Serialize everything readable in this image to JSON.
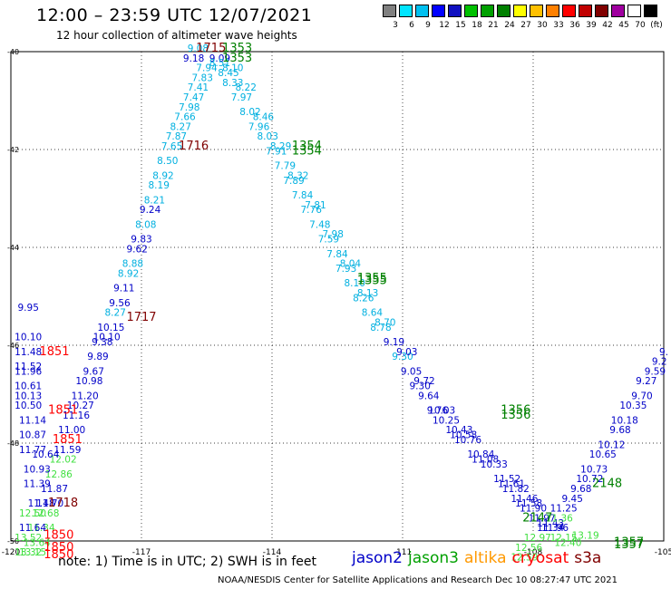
{
  "title": "12:00 – 23:59 UTC 12/07/2021",
  "subtitle": "12 hour collection of altimeter wave heights",
  "color_scale": {
    "colors": [
      "#808080",
      "#00e5ff",
      "#00c0f0",
      "#0000ff",
      "#1010c0",
      "#00c000",
      "#00a000",
      "#008000",
      "#ffff00",
      "#ffc000",
      "#ff8000",
      "#ff0000",
      "#c00000",
      "#800000",
      "#a000a0",
      "#ffffff",
      "#000000"
    ],
    "labels": [
      "3",
      "6",
      "9",
      "12",
      "15",
      "18",
      "21",
      "24",
      "27",
      "30",
      "33",
      "36",
      "39",
      "42",
      "45",
      "70",
      "(ft)"
    ]
  },
  "note": "note: 1) Time is in UTC; 2) SWH is in feet",
  "satellites": [
    {
      "name": "jason2",
      "color": "#0000c8"
    },
    {
      "name": "jason3",
      "color": "#00a000"
    },
    {
      "name": "altika",
      "color": "#ff9900"
    },
    {
      "name": "cryosat",
      "color": "#ff0000"
    },
    {
      "name": "s3a",
      "color": "#800000"
    }
  ],
  "footer": "NOAA/NESDIS Center for Satellite Applications and Research   Dec 10 08:27:47 UTC 2021",
  "chart_data": {
    "type": "scatter",
    "x_ticks": [
      "-120",
      "-117",
      "-114",
      "-111",
      "-108",
      "-105"
    ],
    "y_ticks": [
      "-50",
      "-48",
      "-46",
      "-44",
      "-42",
      "-40"
    ],
    "xlim": [
      -120,
      -105
    ],
    "ylim": [
      -50,
      -40
    ],
    "grid": true,
    "time_labels": [
      {
        "text": "1715",
        "x": -115.4,
        "y": -40.0,
        "color": "#800000"
      },
      {
        "text": "1353",
        "x": -114.8,
        "y": -40.0,
        "color": "#008000"
      },
      {
        "text": "1353",
        "x": -114.8,
        "y": -40.2,
        "color": "#008000"
      },
      {
        "text": "1716",
        "x": -115.8,
        "y": -42.0,
        "color": "#800000"
      },
      {
        "text": "1354",
        "x": -113.2,
        "y": -42.0,
        "color": "#008000"
      },
      {
        "text": "1354",
        "x": -113.2,
        "y": -42.1,
        "color": "#008000"
      },
      {
        "text": "1717",
        "x": -117.0,
        "y": -45.5,
        "color": "#800000"
      },
      {
        "text": "1355",
        "x": -111.7,
        "y": -44.7,
        "color": "#008000"
      },
      {
        "text": "1355",
        "x": -111.7,
        "y": -44.75,
        "color": "#008000"
      },
      {
        "text": "1851",
        "x": -119.0,
        "y": -46.2,
        "color": "#ff0000"
      },
      {
        "text": "1851",
        "x": -118.8,
        "y": -47.4,
        "color": "#ff0000"
      },
      {
        "text": "1851",
        "x": -118.7,
        "y": -48.0,
        "color": "#ff0000"
      },
      {
        "text": "1356",
        "x": -108.4,
        "y": -47.4,
        "color": "#008000"
      },
      {
        "text": "1356",
        "x": -108.4,
        "y": -47.5,
        "color": "#008000"
      },
      {
        "text": "1718",
        "x": -118.8,
        "y": -49.3,
        "color": "#800000"
      },
      {
        "text": "2148",
        "x": -106.3,
        "y": -48.9,
        "color": "#008000"
      },
      {
        "text": "2147",
        "x": -107.9,
        "y": -49.6,
        "color": "#008000"
      },
      {
        "text": "1850",
        "x": -118.9,
        "y": -49.95,
        "color": "#ff0000"
      },
      {
        "text": "1850",
        "x": -118.9,
        "y": -50.2,
        "color": "#ff0000"
      },
      {
        "text": "1850",
        "x": -118.9,
        "y": -50.35,
        "color": "#ff0000"
      },
      {
        "text": "1357",
        "x": -105.8,
        "y": -50.1,
        "color": "#008000"
      },
      {
        "text": "1357",
        "x": -105.8,
        "y": -50.15,
        "color": "#008000"
      }
    ],
    "series": [
      {
        "name": "cryosat ascending",
        "points": [
          [
            -115.7,
            -40.0,
            "9.08",
            "#00b0e0"
          ],
          [
            -115.8,
            -40.2,
            "9.18",
            "#0000c8"
          ],
          [
            -115.5,
            -40.4,
            "7.94",
            "#00b0e0"
          ],
          [
            -115.6,
            -40.6,
            "7.83",
            "#00b0e0"
          ],
          [
            -115.7,
            -40.8,
            "7.41",
            "#00b0e0"
          ],
          [
            -115.8,
            -41.0,
            "7.47",
            "#00b0e0"
          ],
          [
            -115.9,
            -41.2,
            "7.98",
            "#00b0e0"
          ],
          [
            -116.0,
            -41.4,
            "7.66",
            "#00b0e0"
          ],
          [
            -116.1,
            -41.6,
            "8.27",
            "#00b0e0"
          ],
          [
            -116.2,
            -41.8,
            "7.87",
            "#00b0e0"
          ],
          [
            -116.3,
            -42.0,
            "7.65",
            "#00b0e0"
          ],
          [
            -116.4,
            -42.3,
            "8.50",
            "#00b0e0"
          ],
          [
            -116.5,
            -42.6,
            "8.92",
            "#00b0e0"
          ],
          [
            -116.6,
            -42.8,
            "8.19",
            "#00b0e0"
          ],
          [
            -116.7,
            -43.1,
            "8.21",
            "#00b0e0"
          ],
          [
            -116.8,
            -43.3,
            "9.24",
            "#0000c8"
          ],
          [
            -116.9,
            -43.6,
            "8.08",
            "#00b0e0"
          ],
          [
            -117.0,
            -43.9,
            "9.83",
            "#0000c8"
          ],
          [
            -117.1,
            -44.1,
            "9.62",
            "#0000c8"
          ],
          [
            -117.2,
            -44.4,
            "8.88",
            "#00b0e0"
          ],
          [
            -117.3,
            -44.6,
            "8.92",
            "#00b0e0"
          ],
          [
            -117.4,
            -44.9,
            "9.11",
            "#0000c8"
          ],
          [
            -117.5,
            -45.2,
            "9.56",
            "#0000c8"
          ],
          [
            -117.6,
            -45.4,
            "8.27",
            "#00b0e0"
          ],
          [
            -117.7,
            -45.7,
            "10.15",
            "#0000c8"
          ],
          [
            -117.8,
            -45.9,
            "10.10",
            "#0000c8"
          ],
          [
            -117.9,
            -46.0,
            "9.38",
            "#0000c8"
          ],
          [
            -118.0,
            -46.3,
            "9.89",
            "#0000c8"
          ],
          [
            -118.1,
            -46.6,
            "9.67",
            "#0000c8"
          ],
          [
            -118.2,
            -46.8,
            "10.98",
            "#0000c8"
          ],
          [
            -118.3,
            -47.1,
            "11.20",
            "#0000c8"
          ],
          [
            -118.4,
            -47.3,
            "10.27",
            "#0000c8"
          ],
          [
            -118.5,
            -47.5,
            "11.16",
            "#0000c8"
          ],
          [
            -118.6,
            -47.8,
            "11.00",
            "#0000c8"
          ],
          [
            -118.7,
            -48.2,
            "11.59",
            "#0000c8"
          ],
          [
            -118.8,
            -48.4,
            "12.02",
            "#40e040"
          ],
          [
            -118.9,
            -48.7,
            "12.86",
            "#40e040"
          ],
          [
            -119.0,
            -49.0,
            "11.87",
            "#0000c8"
          ],
          [
            -119.1,
            -49.3,
            "11.70",
            "#0000c8"
          ],
          [
            -119.2,
            -49.5,
            "12.68",
            "#40e040"
          ],
          [
            -119.3,
            -49.8,
            "11.34",
            "#40e040"
          ],
          [
            -119.4,
            -50.1,
            "13.64",
            "#40e040"
          ],
          [
            -119.5,
            -50.3,
            "13.15",
            "#40e040"
          ]
        ]
      },
      {
        "name": "s3a west column",
        "points": [
          [
            -119.6,
            -45.3,
            "9.95",
            "#0000c8"
          ],
          [
            -119.6,
            -45.9,
            "10.10",
            "#0000c8"
          ],
          [
            -119.6,
            -46.2,
            "11.48",
            "#0000c8"
          ],
          [
            -119.6,
            -46.5,
            "11.52",
            "#0000c8"
          ],
          [
            -119.6,
            -46.6,
            "11.96",
            "#0000c8"
          ],
          [
            -119.6,
            -46.9,
            "10.61",
            "#0000c8"
          ],
          [
            -119.6,
            -47.1,
            "10.13",
            "#0000c8"
          ],
          [
            -119.6,
            -47.3,
            "10.50",
            "#0000c8"
          ],
          [
            -119.5,
            -47.6,
            "11.14",
            "#0000c8"
          ],
          [
            -119.5,
            -47.9,
            "10.87",
            "#0000c8"
          ],
          [
            -119.5,
            -48.2,
            "11.77",
            "#0000c8"
          ],
          [
            -119.2,
            -48.3,
            "10.64",
            "#0000c8"
          ],
          [
            -119.4,
            -48.6,
            "10.93",
            "#0000c8"
          ],
          [
            -119.4,
            -48.9,
            "11.39",
            "#0000c8"
          ],
          [
            -119.3,
            -49.3,
            "11.48",
            "#0000c8"
          ],
          [
            -119.5,
            -49.5,
            "12.50",
            "#40e040"
          ],
          [
            -119.5,
            -49.8,
            "11.64",
            "#0000c8"
          ],
          [
            -119.6,
            -50.0,
            "13.52",
            "#40e040"
          ],
          [
            -119.6,
            -50.3,
            "13.32",
            "#40e040"
          ]
        ]
      },
      {
        "name": "jason3 descending",
        "points": [
          [
            -115.2,
            -40.2,
            "9.09",
            "#0000c8"
          ],
          [
            -115.2,
            -40.3,
            "8.51",
            "#00b0e0"
          ],
          [
            -115.0,
            -40.5,
            "8.45",
            "#00b0e0"
          ],
          [
            -114.9,
            -40.7,
            "8.33",
            "#00b0e0"
          ],
          [
            -114.7,
            -41.0,
            "7.97",
            "#00b0e0"
          ],
          [
            -114.5,
            -41.3,
            "8.02",
            "#00b0e0"
          ],
          [
            -114.3,
            -41.6,
            "7.96",
            "#00b0e0"
          ],
          [
            -114.1,
            -41.8,
            "8.03",
            "#00b0e0"
          ],
          [
            -113.9,
            -42.1,
            "7.91",
            "#00b0e0"
          ],
          [
            -113.7,
            -42.4,
            "7.79",
            "#00b0e0"
          ],
          [
            -113.5,
            -42.7,
            "7.89",
            "#00b0e0"
          ],
          [
            -113.3,
            -43.0,
            "7.84",
            "#00b0e0"
          ],
          [
            -113.1,
            -43.3,
            "7.76",
            "#00b0e0"
          ],
          [
            -112.9,
            -43.6,
            "7.48",
            "#00b0e0"
          ],
          [
            -112.7,
            -43.9,
            "7.59",
            "#00b0e0"
          ],
          [
            -112.5,
            -44.2,
            "7.84",
            "#00b0e0"
          ],
          [
            -112.3,
            -44.5,
            "7.93",
            "#00b0e0"
          ],
          [
            -112.1,
            -44.8,
            "8.10",
            "#00b0e0"
          ],
          [
            -111.9,
            -45.1,
            "8.26",
            "#00b0e0"
          ],
          [
            -111.7,
            -45.4,
            "8.64",
            "#00b0e0"
          ],
          [
            -111.5,
            -45.7,
            "8.78",
            "#00b0e0"
          ],
          [
            -111.2,
            -46.0,
            "9.19",
            "#0000c8"
          ],
          [
            -111.0,
            -46.3,
            "9.30",
            "#00b0e0"
          ],
          [
            -110.8,
            -46.6,
            "9.05",
            "#0000c8"
          ],
          [
            -110.6,
            -46.9,
            "9.30",
            "#0000c8"
          ],
          [
            -110.4,
            -47.1,
            "9.64",
            "#0000c8"
          ],
          [
            -110.2,
            -47.4,
            "9.76",
            "#0000c8"
          ],
          [
            -110.0,
            -47.6,
            "10.25",
            "#0000c8"
          ],
          [
            -109.7,
            -47.8,
            "10.43",
            "#0000c8"
          ],
          [
            -109.5,
            -48.0,
            "10.76",
            "#0000c8"
          ],
          [
            -109.2,
            -48.3,
            "10.84",
            "#0000c8"
          ],
          [
            -108.9,
            -48.5,
            "10.33",
            "#0000c8"
          ],
          [
            -108.6,
            -48.8,
            "11.52",
            "#0000c8"
          ],
          [
            -108.4,
            -49.0,
            "11.82",
            "#0000c8"
          ],
          [
            -108.2,
            -49.2,
            "11.46",
            "#0000c8"
          ],
          [
            -108.0,
            -49.4,
            "11.90",
            "#0000c8"
          ],
          [
            -107.8,
            -49.6,
            "11.97",
            "#0000c8"
          ],
          [
            -107.5,
            -49.8,
            "11.96",
            "#0000c8"
          ],
          [
            -107.3,
            -50.0,
            "12.15",
            "#40e040"
          ]
        ]
      },
      {
        "name": "jason3 second pass",
        "points": [
          [
            -114.9,
            -40.4,
            "8.10",
            "#00b0e0"
          ],
          [
            -114.6,
            -40.8,
            "8.22",
            "#00b0e0"
          ],
          [
            -114.2,
            -41.4,
            "8.46",
            "#00b0e0"
          ],
          [
            -113.8,
            -42.0,
            "8.29",
            "#00b0e0"
          ],
          [
            -113.4,
            -42.6,
            "8.32",
            "#00b0e0"
          ],
          [
            -113.0,
            -43.2,
            "7.81",
            "#00b0e0"
          ],
          [
            -112.6,
            -43.8,
            "7.98",
            "#00b0e0"
          ],
          [
            -112.2,
            -44.4,
            "8.04",
            "#00b0e0"
          ],
          [
            -111.8,
            -45.0,
            "8.13",
            "#00b0e0"
          ],
          [
            -111.4,
            -45.6,
            "8.70",
            "#00b0e0"
          ],
          [
            -110.9,
            -46.2,
            "9.03",
            "#0000c8"
          ],
          [
            -110.5,
            -46.8,
            "9.72",
            "#0000c8"
          ],
          [
            -110.1,
            -47.4,
            "10.03",
            "#0000c8"
          ],
          [
            -109.6,
            -47.9,
            "10.58",
            "#0000c8"
          ],
          [
            -109.1,
            -48.4,
            "11.08",
            "#0000c8"
          ],
          [
            -108.5,
            -48.9,
            "11.61",
            "#0000c8"
          ],
          [
            -108.1,
            -49.3,
            "11.58",
            "#0000c8"
          ],
          [
            -107.6,
            -49.7,
            "11.43",
            "#0000c8"
          ],
          [
            -107.2,
            -50.1,
            "12.40",
            "#40e040"
          ]
        ]
      },
      {
        "name": "jason3 ascending east",
        "points": [
          [
            -105.0,
            -46.2,
            "9.",
            "#0000c8"
          ],
          [
            -105.1,
            -46.4,
            "9.2",
            "#0000c8"
          ],
          [
            -105.2,
            -46.6,
            "9.59",
            "#0000c8"
          ],
          [
            -105.4,
            -46.8,
            "9.27",
            "#0000c8"
          ],
          [
            -105.5,
            -47.1,
            "9.70",
            "#0000c8"
          ],
          [
            -105.7,
            -47.3,
            "10.35",
            "#0000c8"
          ],
          [
            -105.9,
            -47.6,
            "10.18",
            "#0000c8"
          ],
          [
            -106.0,
            -47.8,
            "9.68",
            "#0000c8"
          ],
          [
            -106.2,
            -48.1,
            "10.12",
            "#0000c8"
          ],
          [
            -106.4,
            -48.3,
            "10.65",
            "#0000c8"
          ],
          [
            -106.6,
            -48.6,
            "10.73",
            "#0000c8"
          ],
          [
            -106.7,
            -48.8,
            "10.72",
            "#0000c8"
          ],
          [
            -106.9,
            -49.0,
            "9.68",
            "#0000c8"
          ],
          [
            -107.1,
            -49.2,
            "9.45",
            "#0000c8"
          ],
          [
            -107.3,
            -49.4,
            "11.25",
            "#0000c8"
          ],
          [
            -107.4,
            -49.6,
            "11.36",
            "#40e040"
          ],
          [
            -107.6,
            -49.8,
            "11.34",
            "#0000c8"
          ],
          [
            -107.9,
            -50.0,
            "12.97",
            "#40e040"
          ],
          [
            -108.1,
            -50.2,
            "12.56",
            "#40e040"
          ],
          [
            -108.2,
            -50.4,
            "12.59",
            "#40e040"
          ],
          [
            -106.8,
            -49.95,
            "13.19",
            "#40e040"
          ]
        ]
      }
    ]
  }
}
